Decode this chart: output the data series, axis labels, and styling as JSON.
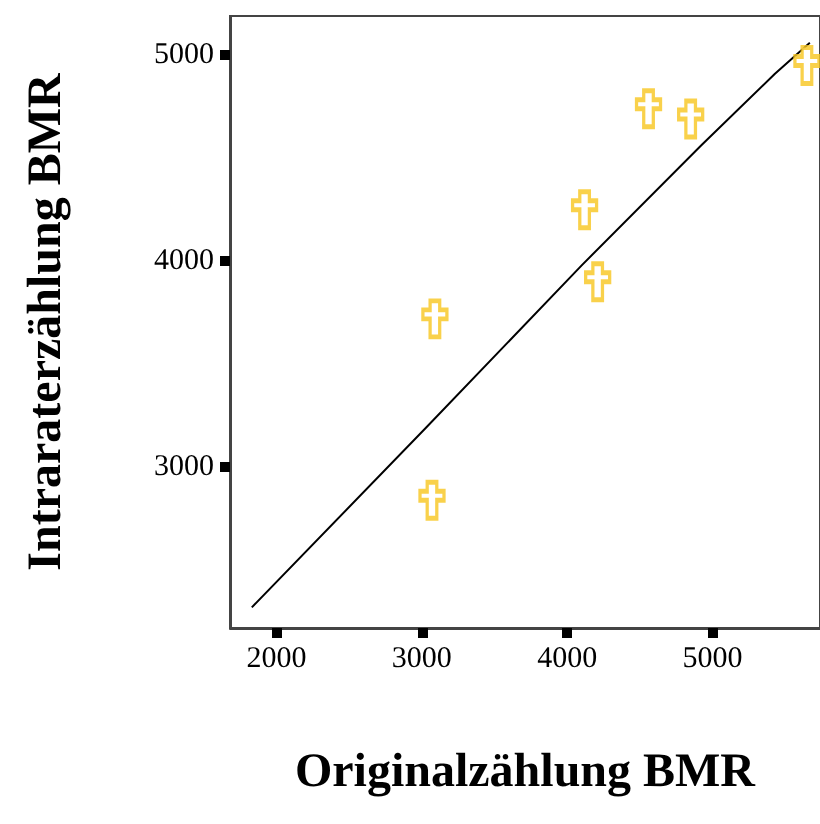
{
  "chart_data": {
    "type": "scatter",
    "xlabel": "Originalzählung BMR",
    "ylabel": "Intraraterzählung BMR",
    "xlim": [
      1680,
      5740
    ],
    "ylim": [
      2220,
      5190
    ],
    "xticks": [
      2000,
      3000,
      4000,
      5000
    ],
    "yticks": [
      3000,
      4000,
      5000
    ],
    "grid": false,
    "series": [
      {
        "color": "#f7c51e",
        "marker": "cross",
        "x": [
          3070,
          3090,
          4120,
          4210,
          4560,
          4850,
          5650
        ],
        "values": [
          2840,
          3720,
          4250,
          3900,
          4740,
          4690,
          4950
        ]
      },
      {
        "type": "line",
        "color": "#000000",
        "marker": "none",
        "line_style": "solid",
        "x": [
          1830,
          3040,
          4100,
          4920,
          5430,
          5670
        ],
        "values": [
          2320,
          3200,
          3980,
          4560,
          4910,
          5060
        ]
      }
    ]
  }
}
